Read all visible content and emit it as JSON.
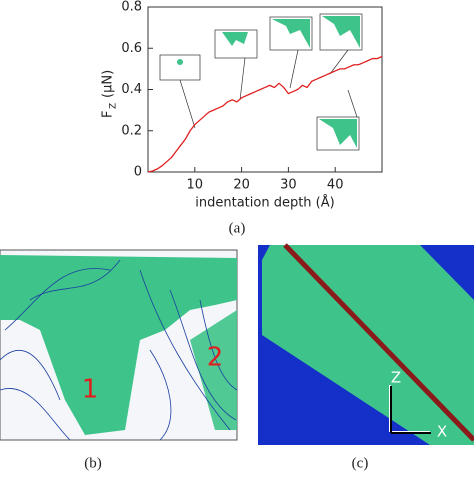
{
  "chart_data": {
    "type": "line",
    "y_label": "F",
    "y_label_sub": "Z",
    "y_label_unit": "(μN)",
    "x_label": "indentation depth (Å)",
    "x": [
      0,
      1,
      2,
      3,
      4,
      5,
      6,
      7,
      8,
      9,
      10,
      11,
      12,
      13,
      14,
      15,
      16,
      17,
      18,
      19,
      20,
      21,
      22,
      23,
      24,
      25,
      26,
      27,
      28,
      29,
      30,
      31,
      32,
      33,
      34,
      35,
      36,
      37,
      38,
      39,
      40,
      41,
      42,
      43,
      44,
      45,
      46,
      47,
      48,
      49,
      50
    ],
    "values": [
      0,
      0.005,
      0.015,
      0.03,
      0.05,
      0.07,
      0.1,
      0.13,
      0.16,
      0.2,
      0.23,
      0.25,
      0.27,
      0.29,
      0.3,
      0.31,
      0.32,
      0.34,
      0.35,
      0.34,
      0.36,
      0.37,
      0.38,
      0.39,
      0.4,
      0.41,
      0.42,
      0.41,
      0.43,
      0.41,
      0.38,
      0.39,
      0.4,
      0.42,
      0.41,
      0.44,
      0.45,
      0.46,
      0.47,
      0.48,
      0.49,
      0.5,
      0.5,
      0.51,
      0.52,
      0.52,
      0.53,
      0.54,
      0.55,
      0.55,
      0.56
    ],
    "color": "#e02020",
    "xlim": [
      0,
      50
    ],
    "xticks": [
      10,
      20,
      30,
      40
    ],
    "ylim": [
      0,
      0.8
    ],
    "yticks": [
      0,
      0.2,
      0.4,
      0.6,
      0.8
    ]
  },
  "panels": {
    "a": "(a)",
    "b": "(b)",
    "c": "(c)"
  },
  "panel_b_labels": [
    "1",
    "2"
  ],
  "panel_c_axes": {
    "z": "Z",
    "x": "X"
  }
}
